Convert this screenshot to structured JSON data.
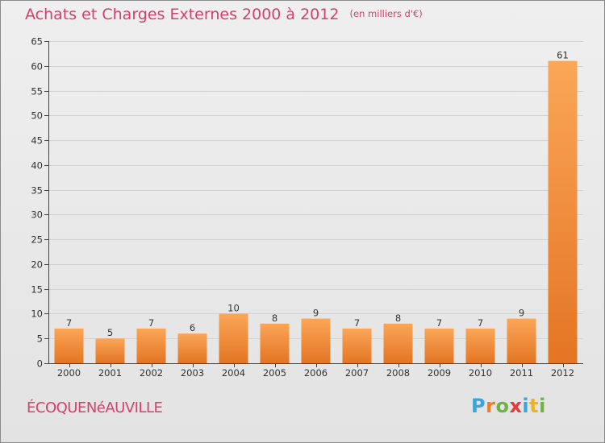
{
  "chart_data": {
    "type": "bar",
    "title": "Achats et Charges Externes 2000 à 2012",
    "subtitle": "(en milliers d'€)",
    "categories": [
      "2000",
      "2001",
      "2002",
      "2003",
      "2004",
      "2005",
      "2006",
      "2007",
      "2008",
      "2009",
      "2010",
      "2011",
      "2012"
    ],
    "values": [
      7,
      5,
      7,
      6,
      10,
      8,
      9,
      7,
      8,
      7,
      7,
      9,
      61
    ],
    "ylim": [
      0,
      65
    ],
    "yticks": [
      0,
      5,
      10,
      15,
      20,
      25,
      30,
      35,
      40,
      45,
      50,
      55,
      60,
      65
    ],
    "grid": true,
    "legend": "none",
    "xlabel": "",
    "ylabel": "",
    "bar_color": "#f5923e"
  },
  "footer": {
    "commune": "ÉCOQUENéAUVILLE",
    "brand_letters": [
      {
        "ch": "P",
        "color": "#3aa2de"
      },
      {
        "ch": "r",
        "color": "#ee7d2b"
      },
      {
        "ch": "o",
        "color": "#6cb544"
      },
      {
        "ch": "x",
        "color": "#e53b3b"
      },
      {
        "ch": "i",
        "color": "#3aa2de"
      },
      {
        "ch": "t",
        "color": "#f2b21c"
      },
      {
        "ch": "i",
        "color": "#6cb544"
      }
    ]
  }
}
